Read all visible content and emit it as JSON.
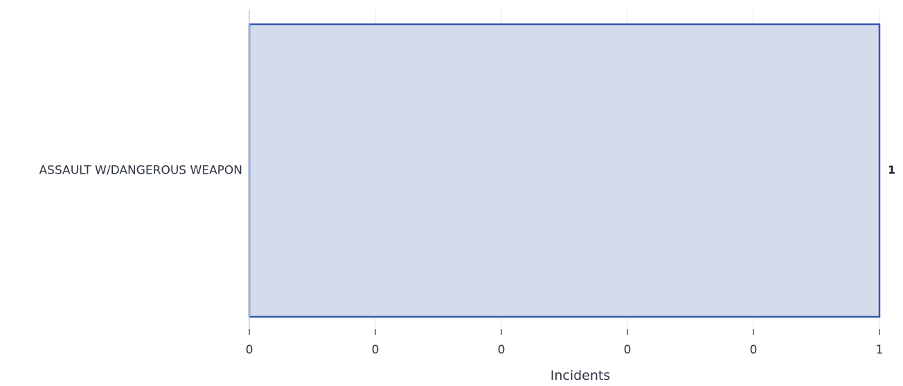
{
  "chart_data": {
    "type": "bar",
    "orientation": "horizontal",
    "categories": [
      "ASSAULT W/DANGEROUS WEAPON"
    ],
    "values": [
      1
    ],
    "value_labels": [
      "1"
    ],
    "xlabel": "Incidents",
    "ylabel": "",
    "xlim": [
      0,
      1
    ],
    "x_tick_labels": [
      "0",
      "0",
      "0",
      "0",
      "0",
      "1"
    ],
    "grid": true,
    "legend": "none",
    "colors": {
      "bar_fill": "#d4dcec",
      "bar_stroke": "#3558b0",
      "grid": "#e3e7ec",
      "axis": "#cccccc",
      "text": "#2d3340"
    }
  }
}
